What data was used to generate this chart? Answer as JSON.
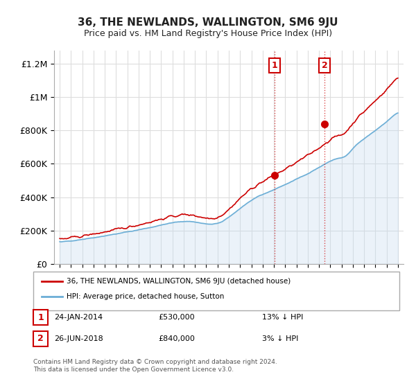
{
  "title": "36, THE NEWLANDS, WALLINGTON, SM6 9JU",
  "subtitle": "Price paid vs. HM Land Registry's House Price Index (HPI)",
  "ylabel_ticks": [
    "£0",
    "£200K",
    "£400K",
    "£600K",
    "£800K",
    "£1M",
    "£1.2M"
  ],
  "ytick_values": [
    0,
    200000,
    400000,
    600000,
    800000,
    1000000,
    1200000
  ],
  "ylim": [
    0,
    1280000
  ],
  "xlim_start": 1994.5,
  "xlim_end": 2025.5,
  "hpi_color": "#6baed6",
  "hpi_fill_color": "#c6dbef",
  "price_color": "#cc0000",
  "purchase1_year": 2014.07,
  "purchase1_price": 530000,
  "purchase2_year": 2018.5,
  "purchase2_price": 840000,
  "vline1_year": 2014.07,
  "vline2_year": 2018.5,
  "legend_label1": "36, THE NEWLANDS, WALLINGTON, SM6 9JU (detached house)",
  "legend_label2": "HPI: Average price, detached house, Sutton",
  "annotation1_label": "1",
  "annotation2_label": "2",
  "annotation1_date": "24-JAN-2014",
  "annotation1_price": "£530,000",
  "annotation1_hpi": "13% ↓ HPI",
  "annotation2_date": "26-JUN-2018",
  "annotation2_price": "£840,000",
  "annotation2_hpi": "3% ↓ HPI",
  "footer": "Contains HM Land Registry data © Crown copyright and database right 2024.\nThis data is licensed under the Open Government Licence v3.0.",
  "title_color": "#222222",
  "bg_color": "#ffffff",
  "grid_color": "#dddddd"
}
